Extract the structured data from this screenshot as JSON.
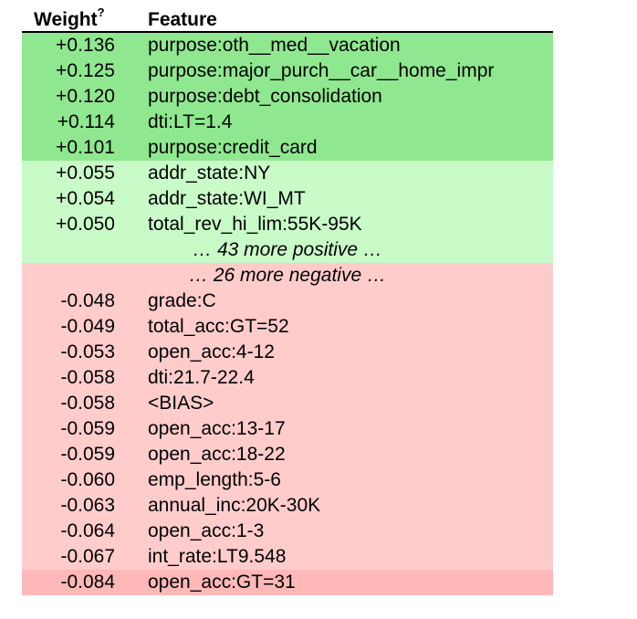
{
  "headers": {
    "weight": "Weight",
    "weight_sup": "?",
    "feature": "Feature"
  },
  "colors": {
    "positive_strong": "#8fe88f",
    "positive_light": "#c9fbc9",
    "negative": "#ffcccc",
    "negative_strong": "#ffb8b8"
  },
  "rows": [
    {
      "kind": "feature",
      "weight": "+0.136",
      "feature": "purpose:oth__med__vacation",
      "bg": "#8fe88f"
    },
    {
      "kind": "feature",
      "weight": "+0.125",
      "feature": "purpose:major_purch__car__home_impr",
      "bg": "#8fe88f"
    },
    {
      "kind": "feature",
      "weight": "+0.120",
      "feature": "purpose:debt_consolidation",
      "bg": "#8fe88f"
    },
    {
      "kind": "feature",
      "weight": "+0.114",
      "feature": "dti:LT=1.4",
      "bg": "#8fe88f"
    },
    {
      "kind": "feature",
      "weight": "+0.101",
      "feature": "purpose:credit_card",
      "bg": "#8fe88f"
    },
    {
      "kind": "feature",
      "weight": "+0.055",
      "feature": "addr_state:NY",
      "bg": "#c9fbc9"
    },
    {
      "kind": "feature",
      "weight": "+0.054",
      "feature": "addr_state:WI_MT",
      "bg": "#c9fbc9"
    },
    {
      "kind": "feature",
      "weight": "+0.050",
      "feature": "total_rev_hi_lim:55K-95K",
      "bg": "#c9fbc9"
    },
    {
      "kind": "summary",
      "text": "… 43 more positive …",
      "bg": "#c9fbc9"
    },
    {
      "kind": "summary",
      "text": "… 26 more negative …",
      "bg": "#ffcccc"
    },
    {
      "kind": "feature",
      "weight": "-0.048",
      "feature": "grade:C",
      "bg": "#ffcccc"
    },
    {
      "kind": "feature",
      "weight": "-0.049",
      "feature": "total_acc:GT=52",
      "bg": "#ffcccc"
    },
    {
      "kind": "feature",
      "weight": "-0.053",
      "feature": "open_acc:4-12",
      "bg": "#ffcccc"
    },
    {
      "kind": "feature",
      "weight": "-0.058",
      "feature": "dti:21.7-22.4",
      "bg": "#ffcccc"
    },
    {
      "kind": "feature",
      "weight": "-0.058",
      "feature": "<BIAS>",
      "bg": "#ffcccc"
    },
    {
      "kind": "feature",
      "weight": "-0.059",
      "feature": "open_acc:13-17",
      "bg": "#ffcccc"
    },
    {
      "kind": "feature",
      "weight": "-0.059",
      "feature": "open_acc:18-22",
      "bg": "#ffcccc"
    },
    {
      "kind": "feature",
      "weight": "-0.060",
      "feature": "emp_length:5-6",
      "bg": "#ffcccc"
    },
    {
      "kind": "feature",
      "weight": "-0.063",
      "feature": "annual_inc:20K-30K",
      "bg": "#ffcccc"
    },
    {
      "kind": "feature",
      "weight": "-0.064",
      "feature": "open_acc:1-3",
      "bg": "#ffcccc"
    },
    {
      "kind": "feature",
      "weight": "-0.067",
      "feature": "int_rate:LT9.548",
      "bg": "#ffcccc"
    },
    {
      "kind": "feature",
      "weight": "-0.084",
      "feature": "open_acc:GT=31",
      "bg": "#ffb8b8"
    }
  ]
}
